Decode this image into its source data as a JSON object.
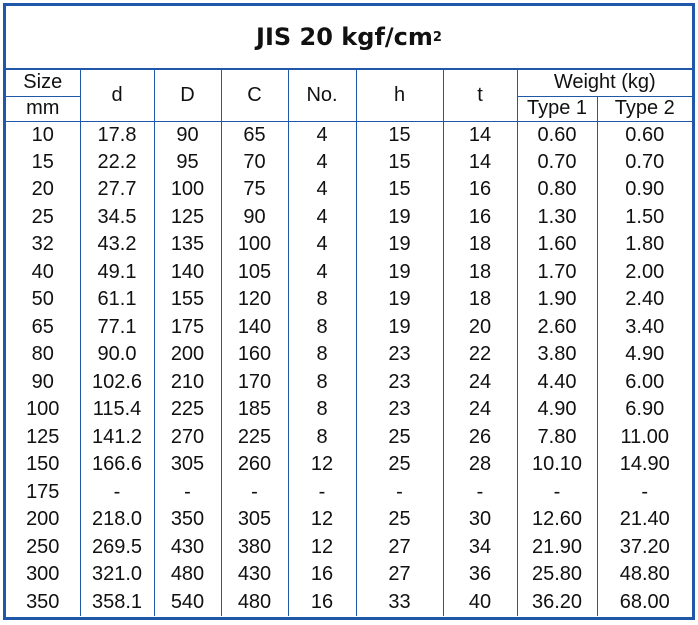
{
  "title": "JIS 20 kgf/cm",
  "title_superscript": "2",
  "header": {
    "size": "Size",
    "size_unit": "mm",
    "columns": [
      "d",
      "D",
      "C",
      "No.",
      "h",
      "t"
    ],
    "weight": "Weight (kg)",
    "types": [
      "Type 1",
      "Type 2"
    ]
  },
  "rows": [
    [
      "10",
      "17.8",
      "90",
      "65",
      "4",
      "15",
      "14",
      "0.60",
      "0.60"
    ],
    [
      "15",
      "22.2",
      "95",
      "70",
      "4",
      "15",
      "14",
      "0.70",
      "0.70"
    ],
    [
      "20",
      "27.7",
      "100",
      "75",
      "4",
      "15",
      "16",
      "0.80",
      "0.90"
    ],
    [
      "25",
      "34.5",
      "125",
      "90",
      "4",
      "19",
      "16",
      "1.30",
      "1.50"
    ],
    [
      "32",
      "43.2",
      "135",
      "100",
      "4",
      "19",
      "18",
      "1.60",
      "1.80"
    ],
    [
      "40",
      "49.1",
      "140",
      "105",
      "4",
      "19",
      "18",
      "1.70",
      "2.00"
    ],
    [
      "50",
      "61.1",
      "155",
      "120",
      "8",
      "19",
      "18",
      "1.90",
      "2.40"
    ],
    [
      "65",
      "77.1",
      "175",
      "140",
      "8",
      "19",
      "20",
      "2.60",
      "3.40"
    ],
    [
      "80",
      "90.0",
      "200",
      "160",
      "8",
      "23",
      "22",
      "3.80",
      "4.90"
    ],
    [
      "90",
      "102.6",
      "210",
      "170",
      "8",
      "23",
      "24",
      "4.40",
      "6.00"
    ],
    [
      "100",
      "115.4",
      "225",
      "185",
      "8",
      "23",
      "24",
      "4.90",
      "6.90"
    ],
    [
      "125",
      "141.2",
      "270",
      "225",
      "8",
      "25",
      "26",
      "7.80",
      "11.00"
    ],
    [
      "150",
      "166.6",
      "305",
      "260",
      "12",
      "25",
      "28",
      "10.10",
      "14.90"
    ],
    [
      "175",
      "-",
      "-",
      "-",
      "-",
      "-",
      "-",
      "-",
      "-"
    ],
    [
      "200",
      "218.0",
      "350",
      "305",
      "12",
      "25",
      "30",
      "12.60",
      "21.40"
    ],
    [
      "250",
      "269.5",
      "430",
      "380",
      "12",
      "27",
      "34",
      "21.90",
      "37.20"
    ],
    [
      "300",
      "321.0",
      "480",
      "430",
      "16",
      "27",
      "36",
      "25.80",
      "48.80"
    ],
    [
      "350",
      "358.1",
      "540",
      "480",
      "16",
      "33",
      "40",
      "36.20",
      "68.00"
    ]
  ]
}
